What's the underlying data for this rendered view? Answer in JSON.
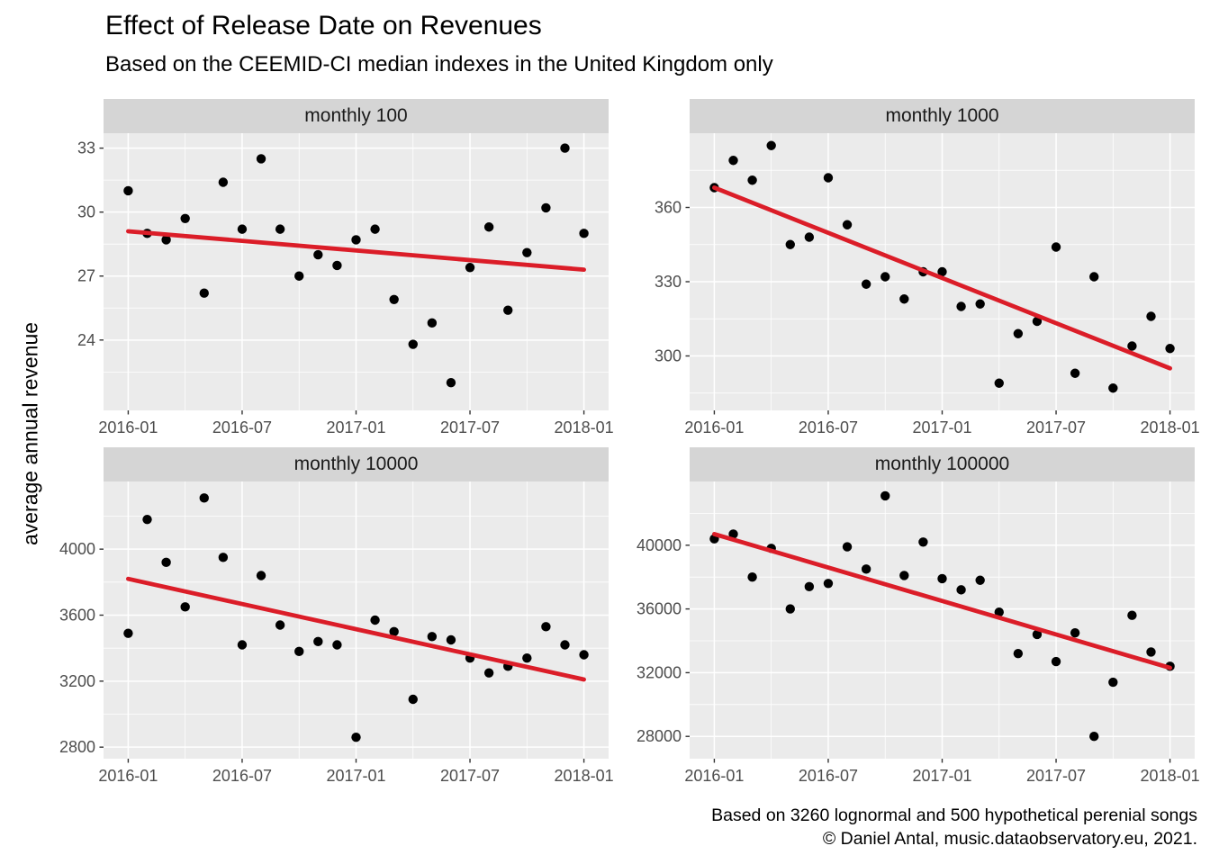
{
  "header": {
    "title": "Effect of Release Date on Revenues",
    "subtitle": "Based on the CEEMID-CI median indexes in the United Kingdom only"
  },
  "y_axis_label": "average annual revenue",
  "caption": {
    "line1": "Based on 3260 lognormal and 500 hypothetical perenial songs",
    "line2": "© Daniel Antal, music.dataobservatory.eu, 2021."
  },
  "colors": {
    "background": "#ffffff",
    "panel_background": "#ebebeb",
    "strip_background": "#d5d5d5",
    "grid": "#ffffff",
    "point": "#000000",
    "trend": "#db1d28",
    "axis_text": "#4d4d4d",
    "tick_mark": "#333333",
    "strip_text": "#1a1a1a"
  },
  "chart_data": [
    {
      "type": "scatter",
      "facet": "monthly 100",
      "x": [
        "2016-01",
        "2016-02",
        "2016-03",
        "2016-04",
        "2016-05",
        "2016-06",
        "2016-07",
        "2016-08",
        "2016-09",
        "2016-10",
        "2016-11",
        "2016-12",
        "2017-01",
        "2017-02",
        "2017-03",
        "2017-04",
        "2017-05",
        "2017-06",
        "2017-07",
        "2017-08",
        "2017-09",
        "2017-10",
        "2017-11",
        "2017-12",
        "2018-01"
      ],
      "values": [
        31.0,
        29.0,
        28.7,
        29.7,
        26.2,
        31.4,
        29.2,
        32.5,
        29.2,
        27.0,
        28.0,
        27.5,
        28.7,
        29.2,
        25.9,
        23.8,
        24.8,
        22.0,
        27.4,
        29.3,
        25.4,
        28.1,
        30.2,
        33.0,
        29.0
      ],
      "trend": {
        "x": [
          0,
          24
        ],
        "y": [
          29.1,
          27.3
        ]
      },
      "x_ticks": {
        "positions": [
          0,
          6,
          12,
          18,
          24
        ],
        "labels": [
          "2016-01",
          "2016-07",
          "2017-01",
          "2017-07",
          "2018-01"
        ],
        "minor_positions": [
          3,
          9,
          15,
          21
        ]
      },
      "y_ticks": {
        "values": [
          24,
          27,
          30,
          33
        ],
        "labels": [
          "24",
          "27",
          "30",
          "33"
        ],
        "minor_values": [
          22.5,
          25.5,
          28.5,
          31.5
        ]
      },
      "xlim": [
        -1.3,
        25.3
      ],
      "ylim": [
        20.7,
        33.7
      ]
    },
    {
      "type": "scatter",
      "facet": "monthly 1000",
      "x": [
        "2016-01",
        "2016-02",
        "2016-03",
        "2016-04",
        "2016-05",
        "2016-06",
        "2016-07",
        "2016-08",
        "2016-09",
        "2016-10",
        "2016-11",
        "2016-12",
        "2017-01",
        "2017-02",
        "2017-03",
        "2017-04",
        "2017-05",
        "2017-06",
        "2017-07",
        "2017-08",
        "2017-09",
        "2017-10",
        "2017-11",
        "2017-12",
        "2018-01"
      ],
      "values": [
        368,
        379,
        371,
        385,
        345,
        348,
        372,
        353,
        329,
        332,
        323,
        334,
        334,
        320,
        321,
        289,
        309,
        314,
        344,
        293,
        332,
        287,
        304,
        316,
        303
      ],
      "trend": {
        "x": [
          0,
          24
        ],
        "y": [
          368,
          295
        ]
      },
      "x_ticks": {
        "positions": [
          0,
          6,
          12,
          18,
          24
        ],
        "labels": [
          "2016-01",
          "2016-07",
          "2017-01",
          "2017-07",
          "2018-01"
        ],
        "minor_positions": [
          3,
          9,
          15,
          21
        ]
      },
      "y_ticks": {
        "values": [
          300,
          330,
          360
        ],
        "labels": [
          "300",
          "330",
          "360"
        ],
        "minor_values": [
          285,
          315,
          345,
          375
        ]
      },
      "xlim": [
        -1.3,
        25.3
      ],
      "ylim": [
        278,
        390
      ]
    },
    {
      "type": "scatter",
      "facet": "monthly 10000",
      "x": [
        "2016-01",
        "2016-02",
        "2016-03",
        "2016-04",
        "2016-05",
        "2016-06",
        "2016-07",
        "2016-08",
        "2016-09",
        "2016-10",
        "2016-11",
        "2016-12",
        "2017-01",
        "2017-02",
        "2017-03",
        "2017-04",
        "2017-05",
        "2017-06",
        "2017-07",
        "2017-08",
        "2017-09",
        "2017-10",
        "2017-11",
        "2017-12",
        "2018-01"
      ],
      "values": [
        3490,
        4180,
        3920,
        3650,
        4310,
        3950,
        3420,
        3840,
        3540,
        3380,
        3440,
        3420,
        2860,
        3570,
        3500,
        3090,
        3470,
        3450,
        3340,
        3250,
        3290,
        3340,
        3530,
        3420,
        3360
      ],
      "trend": {
        "x": [
          0,
          24
        ],
        "y": [
          3820,
          3210
        ]
      },
      "x_ticks": {
        "positions": [
          0,
          6,
          12,
          18,
          24
        ],
        "labels": [
          "2016-01",
          "2016-07",
          "2017-01",
          "2017-07",
          "2018-01"
        ],
        "minor_positions": [
          3,
          9,
          15,
          21
        ]
      },
      "y_ticks": {
        "values": [
          2800,
          3200,
          3600,
          4000
        ],
        "labels": [
          "2800",
          "3200",
          "3600",
          "4000"
        ],
        "minor_values": [
          3000,
          3400,
          3800,
          4200
        ]
      },
      "xlim": [
        -1.3,
        25.3
      ],
      "ylim": [
        2730,
        4410
      ]
    },
    {
      "type": "scatter",
      "facet": "monthly 100000",
      "x": [
        "2016-01",
        "2016-02",
        "2016-03",
        "2016-04",
        "2016-05",
        "2016-06",
        "2016-07",
        "2016-08",
        "2016-09",
        "2016-10",
        "2016-11",
        "2016-12",
        "2017-01",
        "2017-02",
        "2017-03",
        "2017-04",
        "2017-05",
        "2017-06",
        "2017-07",
        "2017-08",
        "2017-09",
        "2017-10",
        "2017-11",
        "2017-12",
        "2018-01"
      ],
      "values": [
        40400,
        40700,
        38000,
        39800,
        36000,
        37400,
        37600,
        39900,
        38500,
        43100,
        38100,
        40200,
        37900,
        37200,
        37800,
        35800,
        33200,
        34400,
        32700,
        34500,
        28000,
        31400,
        35600,
        33300,
        32400
      ],
      "trend": {
        "x": [
          0,
          24
        ],
        "y": [
          40700,
          32300
        ]
      },
      "x_ticks": {
        "positions": [
          0,
          6,
          12,
          18,
          24
        ],
        "labels": [
          "2016-01",
          "2016-07",
          "2017-01",
          "2017-07",
          "2018-01"
        ],
        "minor_positions": [
          3,
          9,
          15,
          21
        ]
      },
      "y_ticks": {
        "values": [
          28000,
          32000,
          36000,
          40000
        ],
        "labels": [
          "28000",
          "32000",
          "36000",
          "40000"
        ],
        "minor_values": [
          30000,
          34000,
          38000,
          42000
        ]
      },
      "xlim": [
        -1.3,
        25.3
      ],
      "ylim": [
        26600,
        44000
      ]
    }
  ]
}
